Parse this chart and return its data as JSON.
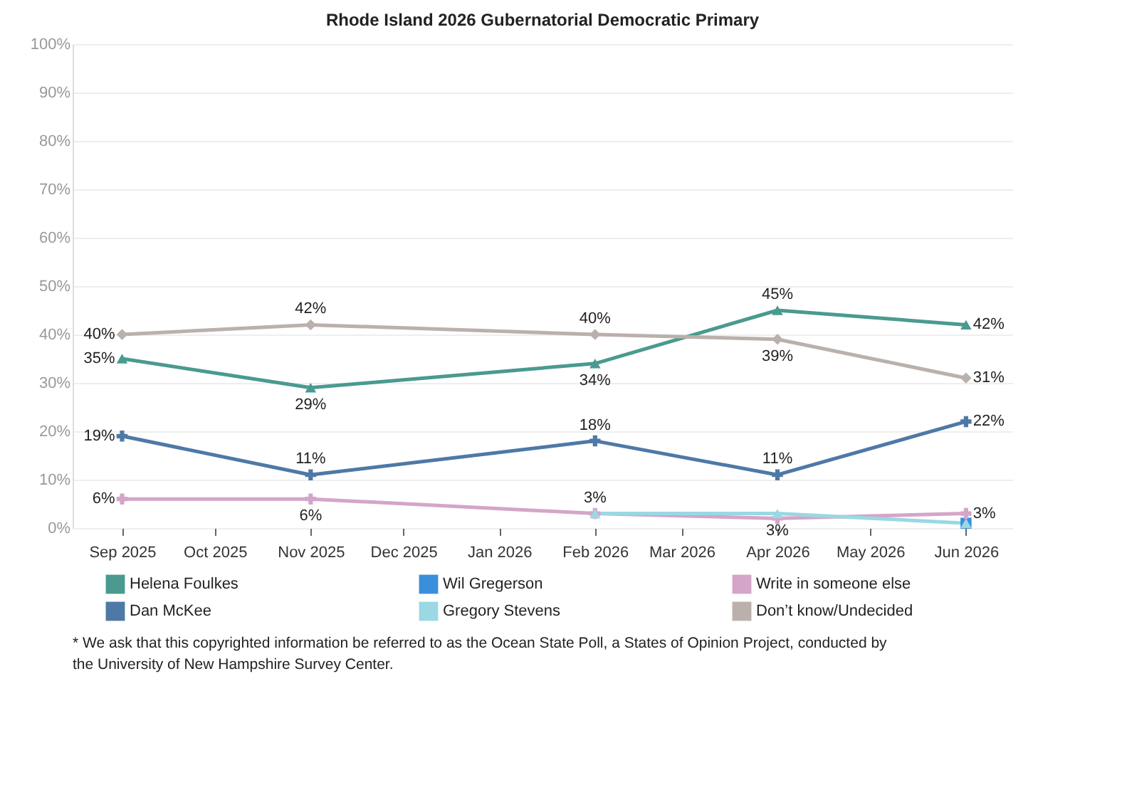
{
  "chart_data": {
    "type": "line",
    "title": "Rhode Island 2026 Gubernatorial Democratic Primary",
    "x": [
      "2025-09",
      "2025-11",
      "2026-02",
      "2026-04",
      "2026-06"
    ],
    "xlim": [
      "2025-08-16",
      "2026-06-16"
    ],
    "xticks": [
      {
        "value": "2025-09",
        "label": "Sep 2025"
      },
      {
        "value": "2025-10",
        "label": "Oct 2025"
      },
      {
        "value": "2025-11",
        "label": "Nov 2025"
      },
      {
        "value": "2025-12",
        "label": "Dec 2025"
      },
      {
        "value": "2026-01",
        "label": "Jan 2026"
      },
      {
        "value": "2026-02",
        "label": "Feb 2026"
      },
      {
        "value": "2026-03",
        "label": "Mar 2026"
      },
      {
        "value": "2026-04",
        "label": "Apr 2026"
      },
      {
        "value": "2026-05",
        "label": "May 2026"
      },
      {
        "value": "2026-06",
        "label": "Jun 2026"
      }
    ],
    "ylim": [
      0,
      100
    ],
    "yticks": [
      {
        "value": 0,
        "label": "0%"
      },
      {
        "value": 10,
        "label": "10%"
      },
      {
        "value": 20,
        "label": "20%"
      },
      {
        "value": 30,
        "label": "30%"
      },
      {
        "value": 40,
        "label": "40%"
      },
      {
        "value": 50,
        "label": "50%"
      },
      {
        "value": 60,
        "label": "60%"
      },
      {
        "value": 70,
        "label": "70%"
      },
      {
        "value": 80,
        "label": "80%"
      },
      {
        "value": 90,
        "label": "90%"
      },
      {
        "value": 100,
        "label": "100%"
      }
    ],
    "grid": "y",
    "legend": "bottom",
    "series": [
      {
        "name": "Helena Foulkes",
        "color": "#4a9a8f",
        "marker": "triangle",
        "values": [
          35,
          29,
          34,
          45,
          42
        ],
        "value_labels": [
          "35%",
          "29%",
          "34%",
          "45%",
          "42%"
        ]
      },
      {
        "name": "Wil Gregerson",
        "color": "#3a8fdc",
        "marker": "square",
        "values": [
          null,
          null,
          null,
          null,
          1
        ],
        "value_labels": [
          null,
          null,
          null,
          null,
          null
        ]
      },
      {
        "name": "Write in someone else",
        "color": "#d4a5c9",
        "marker": "cross",
        "values": [
          6,
          6,
          3,
          2,
          3
        ],
        "value_labels": [
          "6%",
          "6%",
          null,
          null,
          "3%"
        ]
      },
      {
        "name": "Dan McKee",
        "color": "#4e79a7",
        "marker": "cross",
        "values": [
          19,
          11,
          18,
          11,
          22
        ],
        "value_labels": [
          "19%",
          "11%",
          "18%",
          "11%",
          "22%"
        ]
      },
      {
        "name": "Gregory Stevens",
        "color": "#9ad8e3",
        "marker": "triangle",
        "values": [
          null,
          null,
          3,
          3,
          1
        ],
        "value_labels": [
          null,
          null,
          "3%",
          "3%",
          null
        ]
      },
      {
        "name": "Don’t know/Undecided",
        "color": "#bab0ac",
        "marker": "diamond",
        "values": [
          40,
          42,
          40,
          39,
          31
        ],
        "value_labels": [
          "40%",
          "42%",
          "40%",
          "39%",
          "31%"
        ]
      }
    ],
    "annotations": [
      "* We ask that this copyrighted information be referred to as the Ocean State Poll, a States of Opinion Project, conducted by the University of New Hampshire Survey Center."
    ]
  }
}
